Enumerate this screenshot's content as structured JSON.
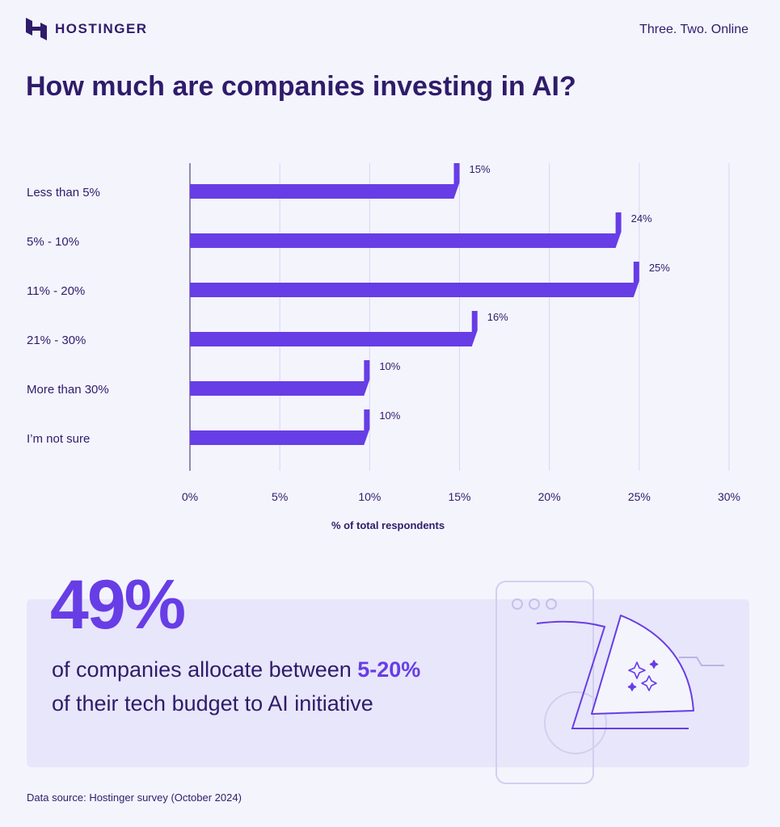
{
  "brand": {
    "name": "HOSTINGER",
    "tagline": "Three. Two. Online"
  },
  "title": "How much are companies investing in AI?",
  "chart_data": {
    "type": "bar",
    "orientation": "horizontal",
    "categories": [
      "Less than 5%",
      "5% - 10%",
      "11% - 20%",
      "21% - 30%",
      "More than 30%",
      "I’m not sure"
    ],
    "values": [
      15,
      24,
      25,
      16,
      10,
      10
    ],
    "value_labels": [
      "15%",
      "24%",
      "25%",
      "16%",
      "10%",
      "10%"
    ],
    "xlim": [
      0,
      30
    ],
    "ticks": [
      0,
      5,
      10,
      15,
      20,
      25,
      30
    ],
    "tick_labels": [
      "0%",
      "5%",
      "10%",
      "15%",
      "20%",
      "25%",
      "30%"
    ],
    "xlabel": "% of total respondents",
    "grid": true,
    "bar_color": "#673de6"
  },
  "callout": {
    "stat": "49%",
    "line1_prefix": "of companies allocate between ",
    "line1_highlight": "5-20%",
    "line2": "of their tech budget to AI initiative"
  },
  "source": "Data source: Hostinger survey (October 2024)",
  "colors": {
    "accent": "#673de6",
    "text": "#2f1c6a",
    "background": "#f4f4fd",
    "panel": "#e8e6fa"
  }
}
